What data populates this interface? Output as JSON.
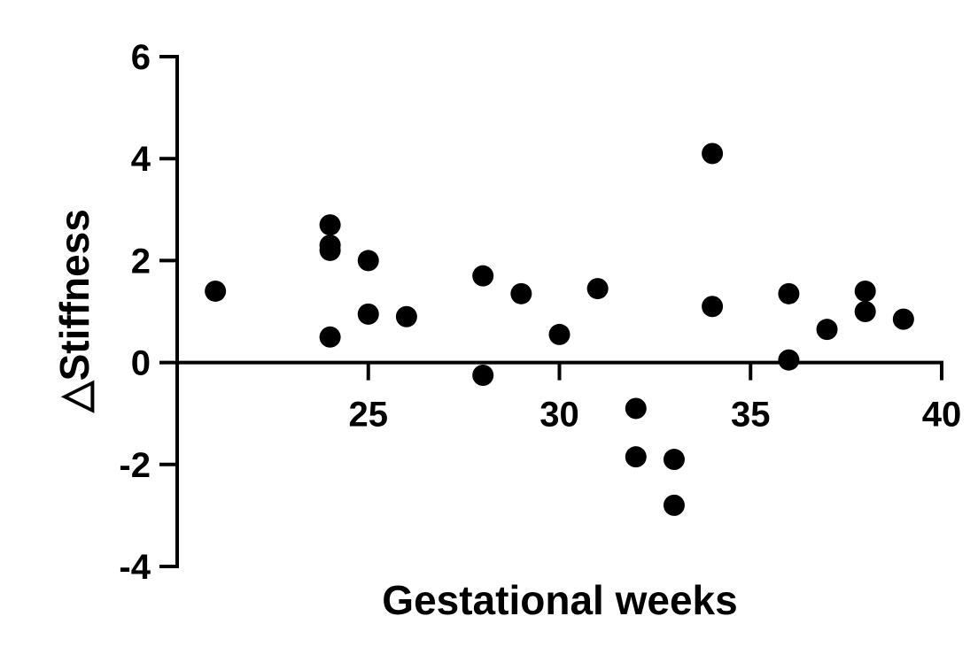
{
  "chart_data": {
    "type": "scatter",
    "title": "",
    "xlabel": "Gestational weeks",
    "ylabel": "△Stiffness",
    "xlim": [
      20,
      40
    ],
    "ylim": [
      -4,
      6
    ],
    "xticks": [
      25,
      30,
      35,
      40
    ],
    "yticks": [
      -4,
      -2,
      0,
      2,
      4,
      6
    ],
    "xtick_labels": [
      "25",
      "30",
      "35",
      "40"
    ],
    "ytick_labels": [
      "-4",
      "-2",
      "0",
      "2",
      "4",
      "6"
    ],
    "grid": false,
    "marker_color": "#000000",
    "points": [
      {
        "x": 21,
        "y": 1.4
      },
      {
        "x": 24,
        "y": 2.7
      },
      {
        "x": 24,
        "y": 2.3
      },
      {
        "x": 24,
        "y": 2.2
      },
      {
        "x": 24,
        "y": 0.5
      },
      {
        "x": 25,
        "y": 2.0
      },
      {
        "x": 25,
        "y": 0.95
      },
      {
        "x": 26,
        "y": 0.9
      },
      {
        "x": 28,
        "y": 1.7
      },
      {
        "x": 28,
        "y": -0.25
      },
      {
        "x": 29,
        "y": 1.35
      },
      {
        "x": 30,
        "y": 0.55
      },
      {
        "x": 31,
        "y": 1.45
      },
      {
        "x": 32,
        "y": -0.9
      },
      {
        "x": 32,
        "y": -1.85
      },
      {
        "x": 33,
        "y": -1.9
      },
      {
        "x": 33,
        "y": -2.8
      },
      {
        "x": 34,
        "y": 4.1
      },
      {
        "x": 34,
        "y": 1.1
      },
      {
        "x": 36,
        "y": 1.35
      },
      {
        "x": 36,
        "y": 0.05
      },
      {
        "x": 37,
        "y": 0.65
      },
      {
        "x": 38,
        "y": 1.4
      },
      {
        "x": 38,
        "y": 1.0
      },
      {
        "x": 39,
        "y": 0.85
      }
    ]
  }
}
